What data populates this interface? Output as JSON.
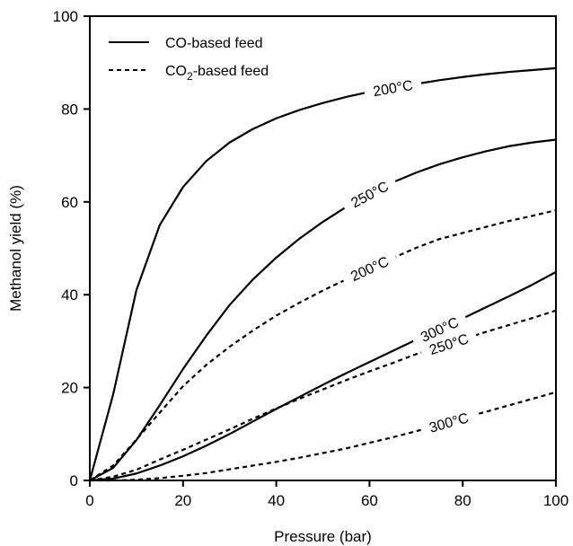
{
  "chart_data": {
    "type": "line",
    "title": "",
    "xlabel": "Pressure (bar)",
    "ylabel": "Methanol yield (%)",
    "xlim": [
      0,
      100
    ],
    "ylim": [
      0,
      100
    ],
    "xticks": [
      0,
      20,
      40,
      60,
      80,
      100
    ],
    "yticks": [
      0,
      20,
      40,
      60,
      80,
      100
    ],
    "grid": false,
    "legend_position": "top-left",
    "legend": [
      {
        "label": "CO-based feed",
        "style": "solid"
      },
      {
        "label_main": "CO",
        "label_sub": "2",
        "label_rest": "-based feed",
        "style": "dashed"
      }
    ],
    "series": [
      {
        "feed": "CO",
        "label": "200°C",
        "style": "solid",
        "x": [
          0,
          5,
          10,
          15,
          20,
          25,
          30,
          35,
          40,
          45,
          50,
          55,
          60,
          65,
          70,
          75,
          80,
          85,
          90,
          95,
          100
        ],
        "y": [
          0,
          18.5,
          41,
          55,
          63.2,
          68.8,
          72.8,
          75.7,
          78,
          79.8,
          81.3,
          82.6,
          83.7,
          84.6,
          85.4,
          86.2,
          86.9,
          87.5,
          88,
          88.4,
          88.8
        ]
      },
      {
        "feed": "CO",
        "label": "250°C",
        "style": "solid",
        "x": [
          0,
          5,
          10,
          15,
          20,
          25,
          30,
          35,
          40,
          45,
          50,
          55,
          60,
          65,
          70,
          75,
          80,
          85,
          90,
          95,
          100
        ],
        "y": [
          0,
          2.7,
          8.7,
          16.2,
          24,
          31.2,
          37.8,
          43.3,
          48,
          52.1,
          55.7,
          58.9,
          61.7,
          64.2,
          66.3,
          68.1,
          69.6,
          70.9,
          72,
          72.8,
          73.4
        ]
      },
      {
        "feed": "CO",
        "label": "300°C",
        "style": "solid",
        "x": [
          0,
          5,
          10,
          15,
          20,
          25,
          30,
          35,
          40,
          45,
          50,
          55,
          60,
          65,
          70,
          75,
          80,
          85,
          90,
          95,
          100
        ],
        "y": [
          0,
          0.4,
          1.5,
          3.2,
          5.2,
          7.5,
          10,
          12.7,
          15.4,
          18,
          20.6,
          23.1,
          25.5,
          27.9,
          30.3,
          32.6,
          34.9,
          37.3,
          39.7,
          42.2,
          44.9
        ]
      },
      {
        "feed": "CO2",
        "label": "200°C",
        "style": "dashed",
        "x": [
          0,
          5,
          10,
          15,
          20,
          25,
          30,
          35,
          40,
          45,
          50,
          55,
          60,
          65,
          70,
          75,
          80,
          85,
          90,
          95,
          100
        ],
        "y": [
          0,
          3.2,
          8.8,
          14.6,
          20.3,
          24.9,
          28.8,
          32.3,
          35.5,
          38.3,
          40.9,
          43.3,
          45.7,
          47.9,
          50.1,
          52,
          53.3,
          54.6,
          55.9,
          57,
          58.2
        ]
      },
      {
        "feed": "CO2",
        "label": "250°C",
        "style": "dashed",
        "x": [
          0,
          5,
          10,
          15,
          20,
          25,
          30,
          35,
          40,
          45,
          50,
          55,
          60,
          65,
          70,
          75,
          80,
          85,
          90,
          95,
          100
        ],
        "y": [
          0,
          0.8,
          2.3,
          4.5,
          6.6,
          8.8,
          11,
          13.3,
          15.5,
          17.6,
          19.6,
          21.6,
          23.5,
          25.3,
          27.2,
          28.8,
          30.4,
          32,
          33.5,
          35,
          36.6
        ]
      },
      {
        "feed": "CO2",
        "label": "300°C",
        "style": "dashed",
        "x": [
          0,
          5,
          10,
          15,
          20,
          25,
          30,
          35,
          40,
          45,
          50,
          55,
          60,
          65,
          70,
          75,
          80,
          85,
          90,
          95,
          100
        ],
        "y": [
          0,
          0,
          0.15,
          0.5,
          1,
          1.6,
          2.4,
          3.2,
          4,
          4.9,
          5.9,
          6.9,
          8.1,
          9.3,
          10.6,
          12,
          13.4,
          14.8,
          16.2,
          17.6,
          19
        ]
      }
    ],
    "curve_labels": [
      {
        "series_index": 0,
        "text": "200°C",
        "x": 65
      },
      {
        "series_index": 1,
        "text": "250°C",
        "x": 60
      },
      {
        "series_index": 3,
        "text": "200°C",
        "x": 60
      },
      {
        "series_index": 2,
        "text": "300°C",
        "x": 75
      },
      {
        "series_index": 4,
        "text": "250°C",
        "x": 77
      },
      {
        "series_index": 5,
        "text": "300°C",
        "x": 77
      }
    ]
  }
}
